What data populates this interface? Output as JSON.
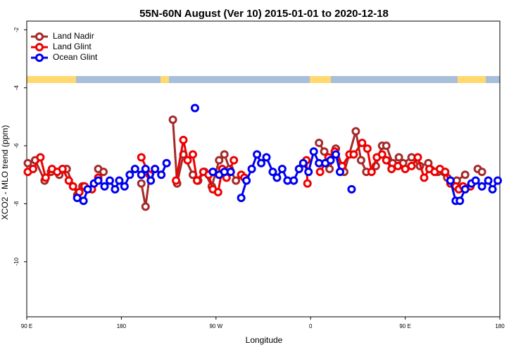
{
  "chart_data": {
    "type": "line",
    "title": "55N-60N August (Ver 10)   2015-01-01 to 2020-12-18",
    "x_label": "Longitude",
    "y_label": "XCO2 - MLO trend (ppm)",
    "xlim": [
      90,
      540
    ],
    "xticks": [
      {
        "value": 90,
        "label": "90 E"
      },
      {
        "value": 180,
        "label": "180"
      },
      {
        "value": 270,
        "label": "90 W"
      },
      {
        "value": 360,
        "label": "0"
      },
      {
        "value": 450,
        "label": "90 E"
      },
      {
        "value": 540,
        "label": "180"
      }
    ],
    "ylim": [
      -11.9,
      -1.7
    ],
    "yticks": [
      -2,
      -4,
      -6,
      -8,
      -10
    ],
    "legend": "top-left",
    "series": [
      {
        "name": "Land Nadir",
        "color": "#a52a2a",
        "x": [
          91,
          98,
          107,
          113,
          121,
          128,
          138,
          143,
          null,
          158,
          163,
          null,
          199,
          203,
          207,
          null,
          229,
          233,
          239,
          248,
          253,
          259,
          266,
          273,
          278,
          283,
          289,
          null,
          368,
          373,
          378,
          384,
          392,
          403,
          408,
          413,
          null,
          422,
          428,
          432,
          438,
          444,
          448,
          456,
          464,
          472,
          481,
          490,
          499,
          507,
          null,
          519,
          523
        ],
        "values": [
          -6.6,
          -6.5,
          -7.2,
          -6.9,
          -7.0,
          -6.8,
          -7.7,
          -7.4,
          null,
          -6.8,
          -6.9,
          null,
          -7.3,
          -8.1,
          -7.0,
          null,
          -5.1,
          -7.3,
          -6.3,
          -7.0,
          -7.2,
          -6.9,
          -7.4,
          -6.5,
          -6.3,
          -6.8,
          -7.2,
          null,
          -5.9,
          -6.2,
          -6.8,
          -6.1,
          -6.9,
          -5.5,
          -6.5,
          -6.9,
          null,
          -6.7,
          -6.0,
          -6.0,
          -6.6,
          -6.4,
          -6.6,
          -6.4,
          -6.7,
          -6.6,
          -6.9,
          -7.1,
          -7.2,
          -7.0,
          null,
          -6.8,
          -6.9
        ]
      },
      {
        "name": "Land Glint",
        "color": "#ee0000",
        "x": [
          91,
          96,
          103,
          108,
          114,
          119,
          124,
          130,
          134,
          140,
          145,
          152,
          158,
          null,
          199,
          207,
          null,
          232,
          239,
          243,
          248,
          252,
          258,
          263,
          267,
          272,
          276,
          280,
          287,
          null,
          294,
          297,
          null,
          356,
          357,
          null,
          369,
          377,
          383,
          390,
          397,
          401,
          409,
          414,
          418,
          423,
          428,
          432,
          437,
          443,
          450,
          456,
          462,
          468,
          473,
          478,
          483,
          488,
          493,
          498,
          501,
          505,
          512
        ],
        "values": [
          -6.9,
          -6.8,
          -6.4,
          -7.1,
          -6.8,
          -6.9,
          -6.8,
          -7.2,
          -7.4,
          -7.6,
          -7.4,
          -7.5,
          -7.1,
          null,
          -6.4,
          -7.0,
          null,
          -7.2,
          -5.8,
          -6.5,
          -6.3,
          -7.2,
          -6.9,
          -7.0,
          -7.5,
          -7.6,
          -6.8,
          -7.1,
          -6.5,
          null,
          -7.0,
          -7.1,
          null,
          -6.5,
          -7.3,
          null,
          -6.9,
          -6.4,
          -6.2,
          -6.7,
          -6.3,
          -6.3,
          -5.9,
          -6.1,
          -6.9,
          -6.4,
          -6.3,
          -6.5,
          -6.8,
          -6.7,
          -6.8,
          -6.7,
          -6.4,
          -7.1,
          -6.8,
          -6.9,
          -6.8,
          -6.9,
          -7.3,
          -7.4,
          -7.5,
          -7.4,
          -7.4
        ]
      },
      {
        "name": "Ocean Glint",
        "color": "#0000ee",
        "x": [
          138,
          144,
          148,
          154,
          158,
          164,
          169,
          174,
          178,
          183,
          188,
          193,
          199,
          203,
          208,
          212,
          218,
          223,
          null,
          250,
          null,
          267,
          273,
          278,
          284,
          null,
          294,
          299,
          304,
          309,
          313,
          318,
          324,
          328,
          333,
          338,
          344,
          349,
          353,
          358,
          363,
          368,
          374,
          379,
          384,
          388,
          null,
          399,
          null,
          493,
          498,
          502,
          507,
          513,
          517,
          523,
          529,
          533,
          538
        ],
        "values": [
          -7.8,
          -7.9,
          -7.5,
          -7.3,
          -7.2,
          -7.4,
          -7.2,
          -7.5,
          -7.2,
          -7.4,
          -7.0,
          -6.8,
          -7.0,
          -6.8,
          -7.2,
          -6.8,
          -7.0,
          -6.6,
          null,
          -4.7,
          null,
          -6.9,
          -7.0,
          -6.9,
          -6.9,
          null,
          -7.8,
          -7.2,
          -6.8,
          -6.3,
          -6.6,
          -6.4,
          -6.9,
          -7.1,
          -6.8,
          -7.2,
          -7.2,
          -6.8,
          -6.6,
          -6.9,
          -6.2,
          -6.6,
          -6.6,
          -6.5,
          -6.3,
          -6.9,
          null,
          -7.5,
          null,
          -7.2,
          -7.9,
          -7.9,
          -7.5,
          -7.3,
          -7.2,
          -7.4,
          -7.2,
          -7.5,
          -7.2
        ]
      }
    ]
  }
}
